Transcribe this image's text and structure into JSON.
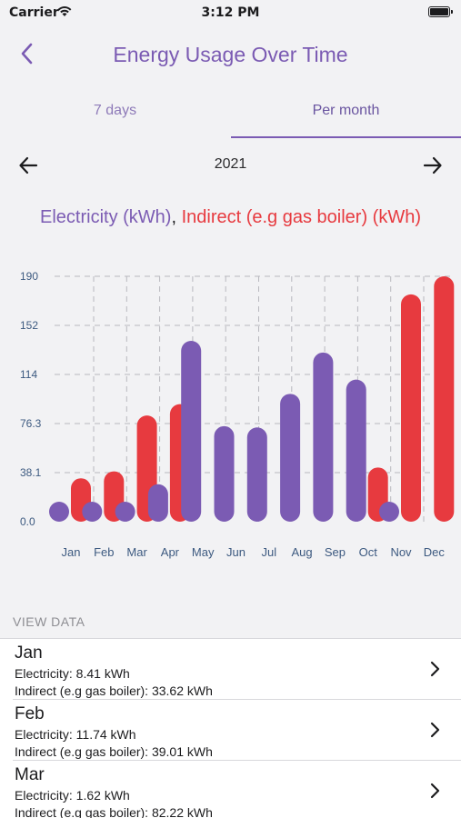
{
  "status": {
    "carrier": "Carrier",
    "time": "3:12 PM"
  },
  "nav": {
    "title": "Energy Usage Over Time"
  },
  "tabs": [
    {
      "label": "7 days"
    },
    {
      "label": "Per month"
    }
  ],
  "year": "2021",
  "legend": {
    "electricity": "Electricity (kWh)",
    "separator": ",",
    "indirect": "Indirect (e.g gas boiler) (kWh)"
  },
  "colors": {
    "accent": "#7b5bb3",
    "electricity": "#7b5bb3",
    "indirect": "#e73a3f"
  },
  "chart_data": {
    "type": "bar",
    "categories": [
      "Jan",
      "Feb",
      "Mar",
      "Apr",
      "May",
      "Jun",
      "Jul",
      "Aug",
      "Sep",
      "Oct",
      "Nov",
      "Dec"
    ],
    "y_ticks": [
      "0.0",
      "38.1",
      "76.3",
      "114",
      "152",
      "190"
    ],
    "ylim": [
      0,
      190
    ],
    "grid": true,
    "series": [
      {
        "name": "Electricity (kWh)",
        "values": [
          8.41,
          11.74,
          1.62,
          29,
          140,
          74,
          73,
          99,
          131,
          110,
          0,
          0
        ]
      },
      {
        "name": "Indirect (e.g gas boiler) (kWh)",
        "values": [
          33.62,
          39.01,
          82.22,
          91,
          0,
          0,
          0,
          0,
          0,
          42,
          176,
          190
        ]
      }
    ]
  },
  "view_data_label": "VIEW DATA",
  "rows": [
    {
      "month": "Jan",
      "electricity": "Electricity: 8.41 kWh",
      "indirect": "Indirect (e.g gas boiler): 33.62 kWh"
    },
    {
      "month": "Feb",
      "electricity": "Electricity: 11.74 kWh",
      "indirect": "Indirect (e.g gas boiler): 39.01 kWh"
    },
    {
      "month": "Mar",
      "electricity": "Electricity: 1.62 kWh",
      "indirect": "Indirect (e.g gas boiler): 82.22 kWh"
    }
  ]
}
